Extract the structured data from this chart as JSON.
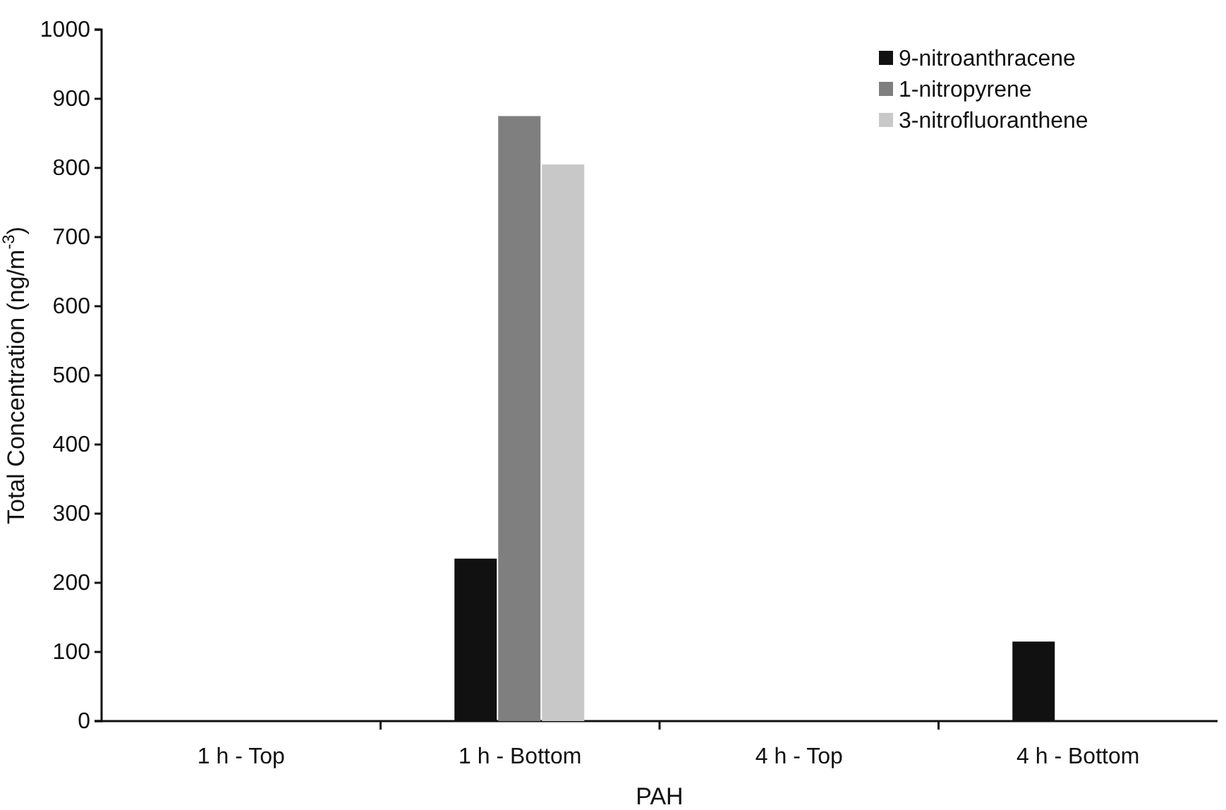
{
  "chart_data": {
    "type": "bar",
    "xlabel": "PAH",
    "ylabel": "Total Concentration (ng/m$^{-3}$)",
    "categories": [
      "1 h - Top",
      "1 h - Bottom",
      "4 h - Top",
      "4 h - Bottom"
    ],
    "series": [
      {
        "name": "9-nitroanthracene",
        "color": "#111111",
        "values": [
          0,
          235,
          0,
          115
        ]
      },
      {
        "name": "1-nitropyrene",
        "color": "#7f7f7f",
        "values": [
          0,
          875,
          0,
          0
        ]
      },
      {
        "name": "3-nitrofluoranthene",
        "color": "#c8c8c8",
        "values": [
          0,
          805,
          0,
          0
        ]
      }
    ],
    "ylim": [
      0,
      1000
    ],
    "yticks": [
      0,
      100,
      200,
      300,
      400,
      500,
      600,
      700,
      800,
      900,
      1000
    ],
    "legend": "top right"
  }
}
